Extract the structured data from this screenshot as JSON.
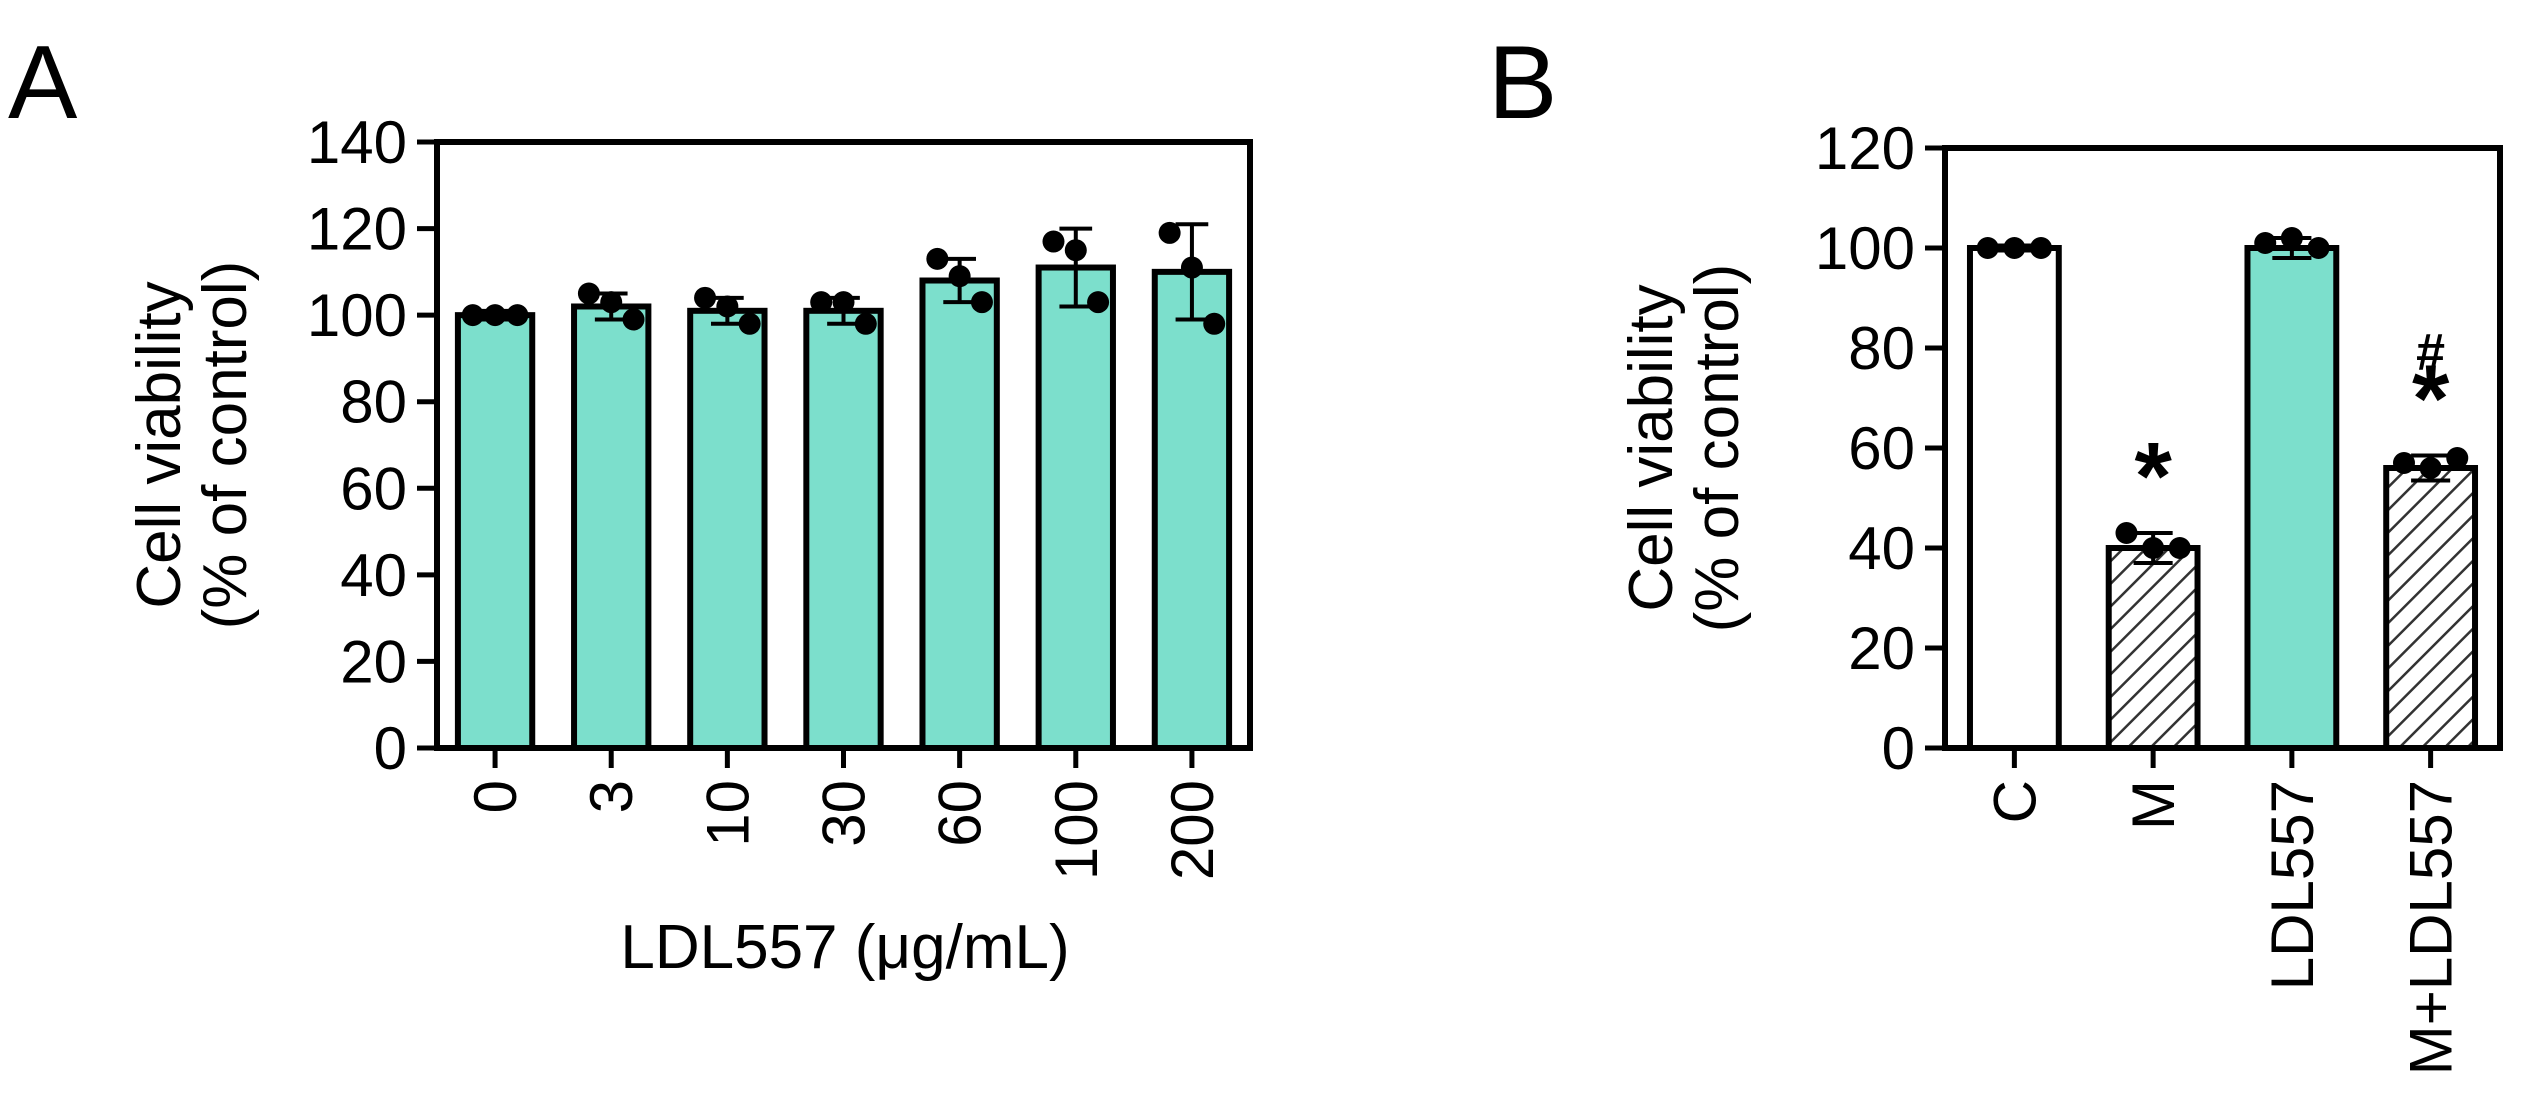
{
  "chart_data": [
    {
      "panel": "A",
      "type": "bar",
      "xlabel": "LDL557 (μg/mL)",
      "ylabel_lines": [
        "Cell viability",
        "(% of control)"
      ],
      "ylim": [
        0,
        140
      ],
      "yticks": [
        "0",
        "20",
        "40",
        "60",
        "80",
        "100",
        "120",
        "140"
      ],
      "bar_color": "#7cdfcc",
      "categories": [
        "0",
        "3",
        "10",
        "30",
        "60",
        "100",
        "200"
      ],
      "bars": [
        {
          "category": "0",
          "mean": 100,
          "err": 1,
          "points": [
            100,
            100,
            100
          ]
        },
        {
          "category": "3",
          "mean": 102,
          "err": 3,
          "points": [
            105,
            103,
            99
          ]
        },
        {
          "category": "10",
          "mean": 101,
          "err": 3,
          "points": [
            104,
            102,
            98
          ]
        },
        {
          "category": "30",
          "mean": 101,
          "err": 3,
          "points": [
            103,
            103,
            98
          ]
        },
        {
          "category": "60",
          "mean": 108,
          "err": 5,
          "points": [
            113,
            109,
            103
          ]
        },
        {
          "category": "100",
          "mean": 111,
          "err": 9,
          "points": [
            117,
            115,
            103
          ]
        },
        {
          "category": "200",
          "mean": 110,
          "err": 11,
          "points": [
            119,
            111,
            98
          ]
        }
      ]
    },
    {
      "panel": "B",
      "type": "bar",
      "xlabel": "",
      "ylabel_lines": [
        "Cell viability",
        "(% of control)"
      ],
      "ylim": [
        0,
        120
      ],
      "yticks": [
        "0",
        "20",
        "40",
        "60",
        "80",
        "100",
        "120"
      ],
      "categories": [
        "C",
        "M",
        "LDL557",
        "M+LDL557"
      ],
      "bars": [
        {
          "category": "C",
          "mean": 100,
          "err": 0.5,
          "points": [
            100,
            100,
            100
          ],
          "fill": "white",
          "annotation": ""
        },
        {
          "category": "M",
          "mean": 40,
          "err": 3,
          "points": [
            43,
            40,
            40
          ],
          "fill": "hatch",
          "annotation": "*"
        },
        {
          "category": "LDL557",
          "mean": 100,
          "err": 2,
          "points": [
            101,
            102,
            100
          ],
          "fill": "#7cdfcc",
          "annotation": ""
        },
        {
          "category": "M+LDL557",
          "mean": 56,
          "err": 2.5,
          "points": [
            57,
            56,
            58
          ],
          "fill": "hatch",
          "annotation": "#\n*"
        }
      ]
    }
  ]
}
